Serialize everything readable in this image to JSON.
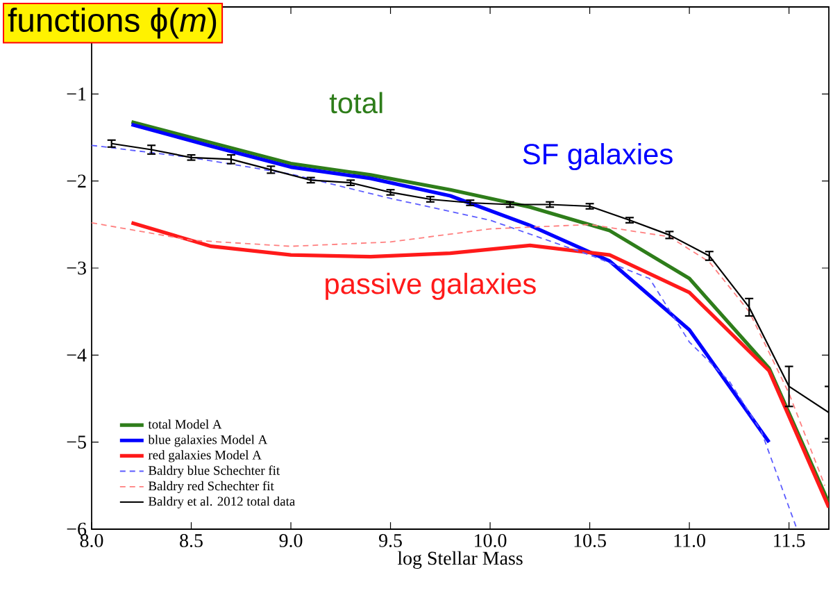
{
  "chart_data": {
    "type": "line",
    "title": "functions ϕ(*m*)",
    "xlabel": "log Stellar Mass",
    "xlim": [
      8.0,
      11.7
    ],
    "ylim": [
      -6,
      0
    ],
    "xticks": [
      {
        "value": 8.0,
        "label": "8.0"
      },
      {
        "value": 8.5,
        "label": "8.5"
      },
      {
        "value": 9.0,
        "label": "9.0"
      },
      {
        "value": 9.5,
        "label": "9.5"
      },
      {
        "value": 10.0,
        "label": "10.0"
      },
      {
        "value": 10.5,
        "label": "10.5"
      },
      {
        "value": 11.0,
        "label": "11.0"
      },
      {
        "value": 11.5,
        "label": "11.5"
      }
    ],
    "yticks": [
      {
        "value": -6,
        "label": "−6"
      },
      {
        "value": -5,
        "label": "−5"
      },
      {
        "value": -4,
        "label": "−4"
      },
      {
        "value": -3,
        "label": "−3"
      },
      {
        "value": -2,
        "label": "−2"
      },
      {
        "value": -1,
        "label": "−1"
      }
    ],
    "legend": "bottom left",
    "annotations": [
      "total",
      "SF galaxies",
      "passive galaxies"
    ],
    "series": [
      {
        "name": "total Model A",
        "color": "#2e7d1a",
        "line_style": "solid",
        "x": [
          8.2,
          8.6,
          9.0,
          9.4,
          9.8,
          10.2,
          10.6,
          11.0,
          11.4,
          11.7
        ],
        "values": [
          -1.32,
          -1.56,
          -1.8,
          -1.93,
          -2.1,
          -2.3,
          -2.57,
          -3.12,
          -4.15,
          -5.7
        ]
      },
      {
        "name": "blue galaxies Model A",
        "color": "#0000ff",
        "line_style": "solid",
        "x": [
          8.2,
          8.6,
          9.0,
          9.4,
          9.8,
          10.2,
          10.6,
          11.0,
          11.4
        ],
        "values": [
          -1.35,
          -1.6,
          -1.84,
          -1.97,
          -2.17,
          -2.51,
          -2.92,
          -3.71,
          -5.0
        ]
      },
      {
        "name": "red galaxies Model A",
        "color": "#ff1a1a",
        "line_style": "solid",
        "x": [
          8.2,
          8.6,
          9.0,
          9.4,
          9.8,
          10.2,
          10.6,
          11.0,
          11.4,
          11.7
        ],
        "values": [
          -2.48,
          -2.75,
          -2.85,
          -2.87,
          -2.83,
          -2.74,
          -2.85,
          -3.28,
          -4.18,
          -5.75
        ]
      },
      {
        "name": "Baldry blue Schechter fit",
        "color": "#5c5cff",
        "line_style": "dashed",
        "x": [
          8.0,
          8.5,
          9.0,
          9.5,
          10.0,
          10.5,
          10.8,
          11.0,
          11.2,
          11.36,
          11.54
        ],
        "values": [
          -1.59,
          -1.73,
          -1.92,
          -2.2,
          -2.45,
          -2.85,
          -3.12,
          -3.85,
          -4.3,
          -4.87,
          -6.0
        ]
      },
      {
        "name": "Baldry red Schechter fit",
        "color": "#ff7f7f",
        "line_style": "dashed",
        "x": [
          8.0,
          8.5,
          9.0,
          9.5,
          10.0,
          10.5,
          10.9,
          11.1,
          11.3,
          11.5,
          11.68
        ],
        "values": [
          -2.48,
          -2.68,
          -2.75,
          -2.7,
          -2.55,
          -2.5,
          -2.64,
          -2.93,
          -3.5,
          -4.44,
          -5.5
        ]
      },
      {
        "name": "Baldry et al. 2012 total data",
        "color": "#000000",
        "line_style": "solid",
        "x": [
          8.1,
          8.3,
          8.5,
          8.7,
          8.9,
          9.1,
          9.3,
          9.5,
          9.7,
          9.9,
          10.1,
          10.3,
          10.5,
          10.7,
          10.9,
          11.1,
          11.3,
          11.5,
          11.7
        ],
        "values": [
          -1.57,
          -1.64,
          -1.73,
          -1.75,
          -1.87,
          -1.99,
          -2.02,
          -2.13,
          -2.21,
          -2.25,
          -2.27,
          -2.27,
          -2.29,
          -2.45,
          -2.62,
          -2.86,
          -3.45,
          -4.36,
          -4.66
        ],
        "errors": [
          0.04,
          0.05,
          0.03,
          0.05,
          0.04,
          0.03,
          0.03,
          0.03,
          0.03,
          0.03,
          0.03,
          0.03,
          0.03,
          0.03,
          0.04,
          0.05,
          0.1,
          0.23,
          0.3
        ]
      }
    ]
  }
}
